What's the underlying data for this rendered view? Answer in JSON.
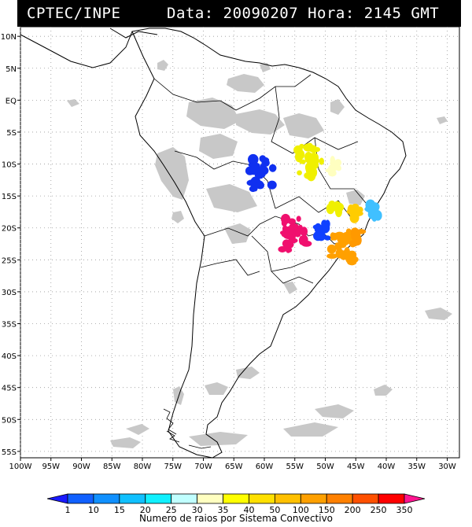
{
  "header": {
    "source": "CPTEC/INPE",
    "datetime": "Data: 20090207 Hora: 2145 GMT"
  },
  "map": {
    "lat_ticks": [
      "10N",
      "5N",
      "EQ",
      "5S",
      "10S",
      "15S",
      "20S",
      "25S",
      "30S",
      "35S",
      "40S",
      "45S",
      "50S",
      "55S"
    ],
    "lon_ticks": [
      "100W",
      "95W",
      "90W",
      "85W",
      "80W",
      "75W",
      "70W",
      "65W",
      "60W",
      "55W",
      "50W",
      "45W",
      "40W",
      "35W",
      "30W"
    ],
    "lat_range": [
      11.5,
      -56
    ],
    "lon_range": [
      -100,
      -28
    ],
    "gridlines": "dotted",
    "cloud_color": "#c8c8c8",
    "convective_systems": [
      {
        "name": "system-mato-grosso-west",
        "lon": -60.5,
        "lat": -11.5,
        "color": "#1030f0"
      },
      {
        "name": "system-para-south",
        "lon": -52.5,
        "lat": -9.5,
        "color": "#f0f000"
      },
      {
        "name": "system-tocantins",
        "lon": -48.5,
        "lat": -10.5,
        "color": "#ffffc0"
      },
      {
        "name": "system-goias",
        "lon": -48.5,
        "lat": -16.5,
        "color": "#f0f000"
      },
      {
        "name": "system-minas-north",
        "lon": -45.0,
        "lat": -17.5,
        "color": "#ffcc00"
      },
      {
        "name": "system-minas-east",
        "lon": -42.0,
        "lat": -17.5,
        "color": "#40c0ff"
      },
      {
        "name": "system-mato-grosso-sul",
        "lon": -55.0,
        "lat": -21.0,
        "color": "#f0106e"
      },
      {
        "name": "system-sao-paulo",
        "lon": -47.0,
        "lat": -23.0,
        "color": "#ffa000"
      },
      {
        "name": "system-parana-small",
        "lon": -50.5,
        "lat": -20.5,
        "color": "#1040ff"
      },
      {
        "name": "system-rio",
        "lon": -45.0,
        "lat": -21.5,
        "color": "#ff9900"
      }
    ]
  },
  "colorbar": {
    "labels": [
      "1",
      "10",
      "15",
      "20",
      "25",
      "30",
      "35",
      "40",
      "50",
      "100",
      "150",
      "200",
      "250",
      "350"
    ],
    "colors": [
      "#1a1aff",
      "#1060ff",
      "#1090ff",
      "#10c0ff",
      "#10f0ff",
      "#c0ffff",
      "#ffffc0",
      "#ffff00",
      "#ffe000",
      "#ffc000",
      "#ffa000",
      "#ff8000",
      "#ff5000",
      "#ff0000",
      "#ff1490"
    ],
    "title": "Numero de raios por Sistema Convectivo"
  }
}
